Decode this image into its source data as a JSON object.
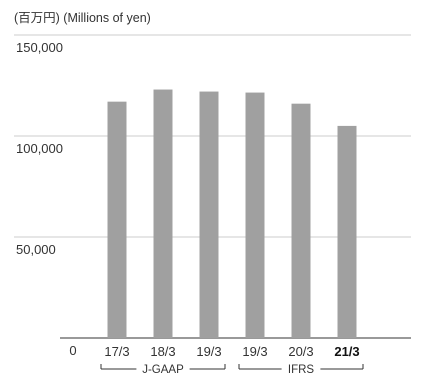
{
  "chart_data": {
    "type": "bar",
    "unit_label": "(百万円) (Millions of yen)",
    "categories": [
      "17/3",
      "18/3",
      "19/3",
      "19/3",
      "20/3",
      "21/3"
    ],
    "highlight_category_index": 5,
    "values": [
      117000,
      123000,
      122000,
      121500,
      116000,
      105000
    ],
    "ylim": [
      0,
      150000
    ],
    "yticks": [
      {
        "value": 150000,
        "label": "150,000"
      },
      {
        "value": 100000,
        "label": "100,000"
      },
      {
        "value": 50000,
        "label": "50,000"
      },
      {
        "value": 0,
        "label": "0"
      }
    ],
    "grid": true,
    "bar_color": "#a0a0a0",
    "grid_color": "#cccccc",
    "axis_color": "#333333",
    "groups": [
      {
        "label": "J-GAAP",
        "from": 0,
        "to": 2
      },
      {
        "label": "IFRS",
        "from": 3,
        "to": 5
      }
    ]
  }
}
